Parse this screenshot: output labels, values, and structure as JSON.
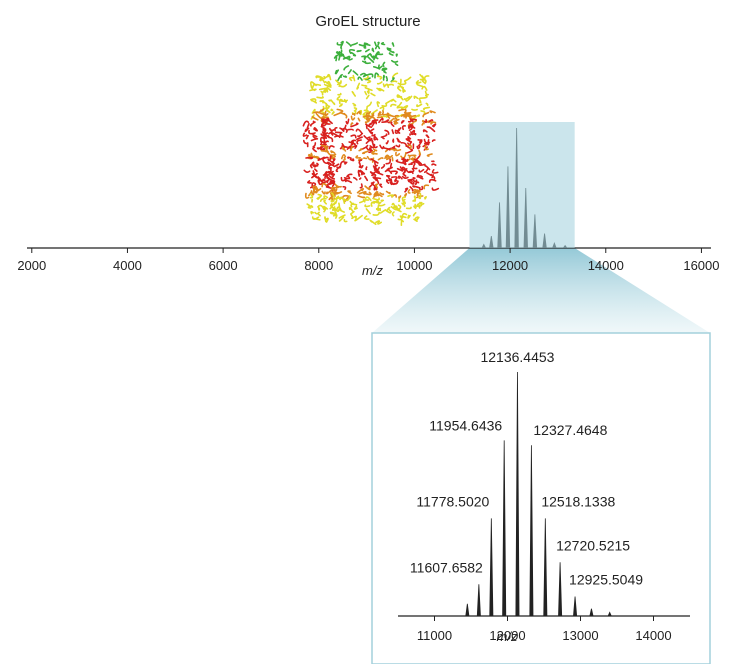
{
  "structure_label": "GroEL structure",
  "colors": {
    "axis": "#222222",
    "highlight": "#a9d4df",
    "highlight_stroke": "#8cc3d2",
    "zoom_fill": "#cfe6ec",
    "inset_border": "#a3d0dc",
    "green": "#3caf3c",
    "yellow": "#e0dc28",
    "orange": "#e08a1e",
    "red": "#d8201e"
  },
  "chart_data": [
    {
      "type": "line",
      "title": "",
      "xlabel": "m/z",
      "ylabel": "",
      "xlim": [
        1900,
        16200
      ],
      "ylim": [
        0,
        1
      ],
      "xticks": [
        2000,
        4000,
        6000,
        8000,
        10000,
        12000,
        14000,
        16000
      ],
      "highlight_range": [
        11150,
        13350
      ],
      "series": [
        {
          "peaks_x": [
            11450,
            11607.6582,
            11778.502,
            11954.6436,
            12136.4453,
            12327.4648,
            12518.1338,
            12720.5215,
            12925.5049,
            13150
          ],
          "peaks_y": [
            0.03,
            0.1,
            0.38,
            0.68,
            1.0,
            0.5,
            0.28,
            0.12,
            0.04,
            0.02
          ]
        }
      ]
    },
    {
      "type": "line",
      "title": "",
      "xlabel": "m/z",
      "ylabel": "",
      "xlim": [
        10500,
        14500
      ],
      "ylim": [
        0,
        1.05
      ],
      "xticks": [
        11000,
        12000,
        13000,
        14000
      ],
      "series": [
        {
          "peaks_x": [
            11450,
            11607.6582,
            11778.502,
            11954.6436,
            12136.4453,
            12327.4648,
            12518.1338,
            12720.5215,
            12925.5049,
            13150,
            13400
          ],
          "peaks_y": [
            0.05,
            0.13,
            0.4,
            0.72,
            1.0,
            0.7,
            0.4,
            0.22,
            0.08,
            0.03,
            0.015
          ]
        }
      ],
      "labels": [
        {
          "text": "12136.4453",
          "x": 12136.4453
        },
        {
          "text": "11954.6436",
          "x": 11954.6436
        },
        {
          "text": "12327.4648",
          "x": 12327.4648
        },
        {
          "text": "11778.5020",
          "x": 11778.502
        },
        {
          "text": "12518.1338",
          "x": 12518.1338
        },
        {
          "text": "12720.5215",
          "x": 12720.5215
        },
        {
          "text": "11607.6582",
          "x": 11607.6582
        },
        {
          "text": "12925.5049",
          "x": 12925.5049
        }
      ]
    }
  ]
}
